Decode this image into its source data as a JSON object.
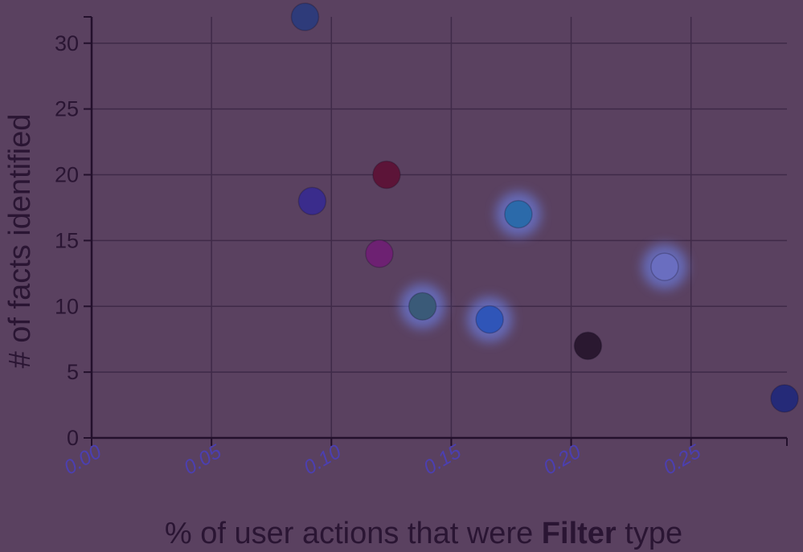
{
  "chart_data": {
    "type": "scatter",
    "title": "",
    "xlabel": {
      "prefix": "% of user actions that were ",
      "bold": "Filter",
      "suffix": " type"
    },
    "ylabel": "# of facts identified",
    "xlim": [
      0,
      0.29
    ],
    "ylim": [
      0,
      32
    ],
    "xticks": [
      {
        "value": 0,
        "label": "0.00"
      },
      {
        "value": 0.05,
        "label": "0.05"
      },
      {
        "value": 0.1,
        "label": "0.10"
      },
      {
        "value": 0.15,
        "label": "0.15"
      },
      {
        "value": 0.2,
        "label": "0.20"
      },
      {
        "value": 0.25,
        "label": "0.25"
      }
    ],
    "yticks": [
      {
        "value": 0,
        "label": "0"
      },
      {
        "value": 5,
        "label": "5"
      },
      {
        "value": 10,
        "label": "10"
      },
      {
        "value": 15,
        "label": "15"
      },
      {
        "value": 20,
        "label": "20"
      },
      {
        "value": 25,
        "label": "25"
      },
      {
        "value": 30,
        "label": "30"
      }
    ],
    "grid": true,
    "points": [
      {
        "x": 0.089,
        "y": 32,
        "color": "#2e3b7a",
        "glow": false
      },
      {
        "x": 0.092,
        "y": 18,
        "color": "#3a2c8c",
        "glow": false
      },
      {
        "x": 0.123,
        "y": 20,
        "color": "#5c1438",
        "glow": false
      },
      {
        "x": 0.12,
        "y": 14,
        "color": "#6d2172",
        "glow": false
      },
      {
        "x": 0.138,
        "y": 10,
        "color": "#3a5a78",
        "glow": true
      },
      {
        "x": 0.166,
        "y": 9,
        "color": "#2f55b8",
        "glow": true
      },
      {
        "x": 0.178,
        "y": 17,
        "color": "#2b6aaa",
        "glow": true
      },
      {
        "x": 0.207,
        "y": 7,
        "color": "#2a1830",
        "glow": false
      },
      {
        "x": 0.239,
        "y": 13,
        "color": "#6a6ec0",
        "glow": true
      },
      {
        "x": 0.289,
        "y": 3,
        "color": "#252a78",
        "glow": false
      }
    ]
  }
}
